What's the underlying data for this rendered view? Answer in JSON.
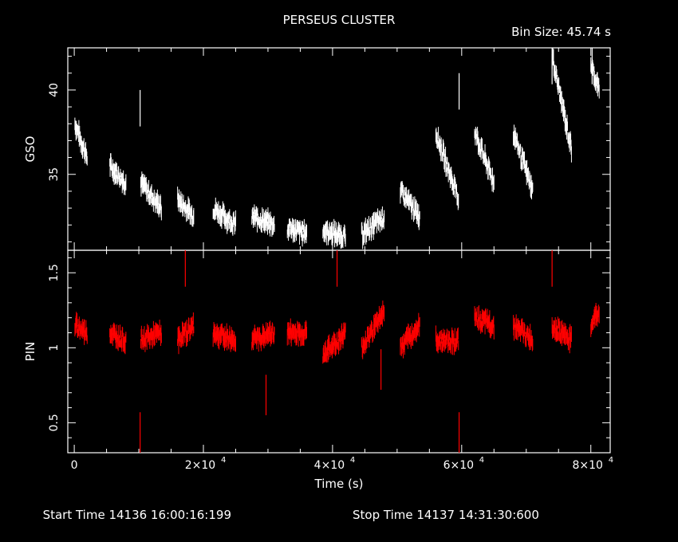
{
  "chart_data": [
    {
      "type": "scatter",
      "title": "PERSEUS CLUSTER",
      "bin_size_label": "Bin Size: 45.74 s",
      "ylabel": "GSO",
      "xlim": [
        -1000,
        83000
      ],
      "ylim": [
        30.5,
        42.5
      ],
      "yticks": [
        "35",
        "40"
      ],
      "ytick_values": [
        35,
        40
      ],
      "color": "#ffffff",
      "segments": [
        {
          "x": [
            100,
            2000
          ],
          "y": [
            38.0,
            36.0
          ]
        },
        {
          "x": [
            5500,
            8000
          ],
          "y": [
            35.5,
            34.5
          ]
        },
        {
          "x": [
            10300,
            13500
          ],
          "y": [
            34.5,
            33.0
          ]
        },
        {
          "x": [
            16000,
            18500
          ],
          "y": [
            33.5,
            32.5
          ]
        },
        {
          "x": [
            21500,
            25000
          ],
          "y": [
            33.0,
            32.0
          ]
        },
        {
          "x": [
            27500,
            31000
          ],
          "y": [
            32.5,
            32.0
          ]
        },
        {
          "x": [
            33000,
            36000
          ],
          "y": [
            31.8,
            31.5
          ]
        },
        {
          "x": [
            38500,
            42000
          ],
          "y": [
            31.7,
            31.3
          ]
        },
        {
          "x": [
            44500,
            48000
          ],
          "y": [
            31.4,
            32.5
          ]
        },
        {
          "x": [
            50500,
            53500
          ],
          "y": [
            34.0,
            32.5
          ]
        },
        {
          "x": [
            56000,
            59500
          ],
          "y": [
            37.5,
            33.5
          ]
        },
        {
          "x": [
            62000,
            65000
          ],
          "y": [
            37.5,
            34.5
          ]
        },
        {
          "x": [
            68000,
            71000
          ],
          "y": [
            37.5,
            34.0
          ]
        },
        {
          "x": [
            74000,
            77000
          ],
          "y": [
            42.0,
            36.5
          ]
        },
        {
          "x": [
            80000,
            81300
          ],
          "y": [
            41.5,
            40.0
          ]
        }
      ],
      "spikes": [
        {
          "x": 10200,
          "y": 40.0
        },
        {
          "x": 59600,
          "y": 41.0
        },
        {
          "x": 74000,
          "y": 42.5
        },
        {
          "x": 80200,
          "y": 42.5
        }
      ]
    },
    {
      "type": "scatter",
      "ylabel": "PIN",
      "xlabel": "Time (s)",
      "xlim": [
        -1000,
        83000
      ],
      "ylim": [
        0.3,
        1.65
      ],
      "yticks": [
        "0.5",
        "1",
        "1.5"
      ],
      "ytick_values": [
        0.5,
        1,
        1.5
      ],
      "xticks": [
        "0",
        "2×10",
        "4×10",
        "6×10",
        "8×10"
      ],
      "xtick_values": [
        0,
        20000,
        40000,
        60000,
        80000
      ],
      "xtick_exponent": "4",
      "color": "#ff0000",
      "segments": [
        {
          "x": [
            100,
            2000
          ],
          "y": [
            1.15,
            1.1
          ]
        },
        {
          "x": [
            5500,
            8000
          ],
          "y": [
            1.1,
            1.05
          ]
        },
        {
          "x": [
            10300,
            13500
          ],
          "y": [
            1.05,
            1.1
          ]
        },
        {
          "x": [
            16000,
            18500
          ],
          "y": [
            1.05,
            1.15
          ]
        },
        {
          "x": [
            21500,
            25000
          ],
          "y": [
            1.1,
            1.05
          ]
        },
        {
          "x": [
            27500,
            31000
          ],
          "y": [
            1.05,
            1.1
          ]
        },
        {
          "x": [
            33000,
            36000
          ],
          "y": [
            1.1,
            1.1
          ]
        },
        {
          "x": [
            38500,
            42000
          ],
          "y": [
            0.95,
            1.1
          ]
        },
        {
          "x": [
            44500,
            48000
          ],
          "y": [
            1.0,
            1.25
          ]
        },
        {
          "x": [
            50500,
            53500
          ],
          "y": [
            1.0,
            1.15
          ]
        },
        {
          "x": [
            56000,
            59500
          ],
          "y": [
            1.05,
            1.05
          ]
        },
        {
          "x": [
            62000,
            65000
          ],
          "y": [
            1.2,
            1.15
          ]
        },
        {
          "x": [
            68000,
            71000
          ],
          "y": [
            1.15,
            1.05
          ]
        },
        {
          "x": [
            74000,
            77000
          ],
          "y": [
            1.15,
            1.05
          ]
        },
        {
          "x": [
            80000,
            81300
          ],
          "y": [
            1.15,
            1.25
          ]
        }
      ],
      "spikes": [
        {
          "x": 10200,
          "y": 0.3
        },
        {
          "x": 17200,
          "y": 1.65
        },
        {
          "x": 29700,
          "y": 0.55
        },
        {
          "x": 40700,
          "y": 1.65
        },
        {
          "x": 47500,
          "y": 0.72
        },
        {
          "x": 59600,
          "y": 0.3
        },
        {
          "x": 74000,
          "y": 1.65
        }
      ]
    }
  ],
  "footer": {
    "start_label": "Start Time 14136 16:00:16:199",
    "stop_label": "Stop Time 14137 14:31:30:600"
  }
}
